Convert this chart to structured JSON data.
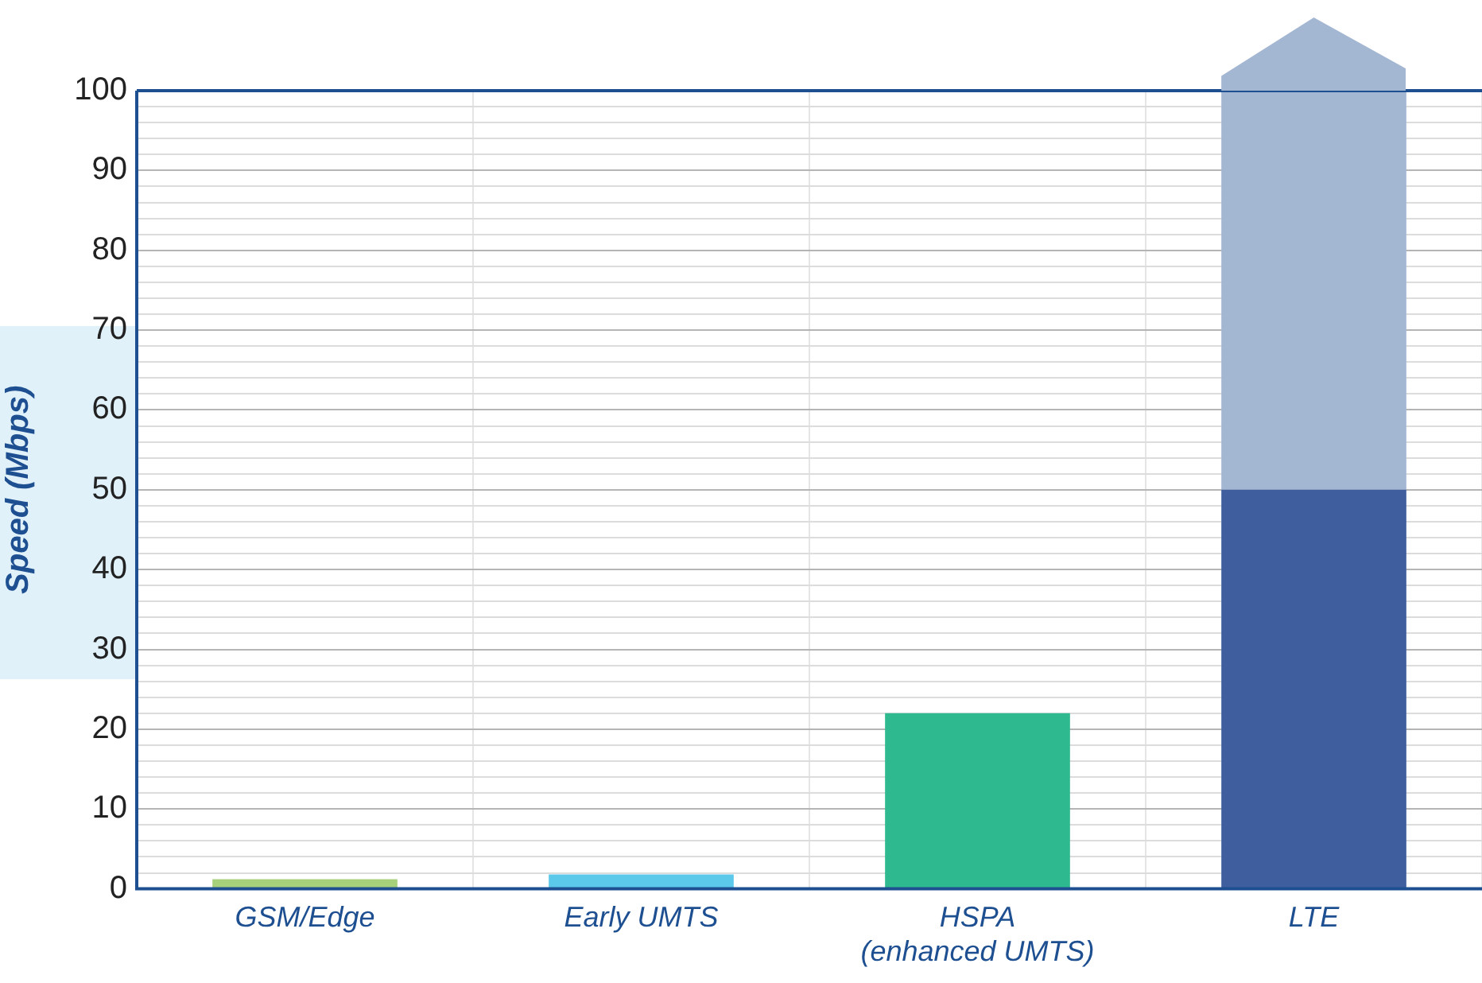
{
  "chart_data": {
    "type": "bar",
    "ylabel": "Speed (Mbps)",
    "categories": [
      "GSM/Edge",
      "Early UMTS",
      "HSPA\n(enhanced UMTS)",
      "LTE"
    ],
    "stacked": true,
    "series": [
      {
        "colors": [
          "#a6d07a",
          "#5cc8ea",
          "#2fb98f",
          "#3f5e9e"
        ],
        "values": [
          1.2,
          1.8,
          22,
          50
        ]
      },
      {
        "color": "#a3b6d2",
        "values": [
          null,
          null,
          null,
          50
        ]
      }
    ],
    "ylim": [
      0,
      100
    ],
    "yticks": [
      0,
      {
        "value": 2,
        "label": null
      },
      {
        "value": 4,
        "label": null
      },
      {
        "value": 6,
        "label": null
      },
      {
        "value": 8,
        "label": null
      },
      10,
      {
        "value": 12,
        "label": null
      },
      {
        "value": 14,
        "label": null
      },
      {
        "value": 16,
        "label": null
      },
      {
        "value": 18,
        "label": null
      },
      20,
      {
        "value": 22,
        "label": null
      },
      {
        "value": 24,
        "label": null
      },
      {
        "value": 26,
        "label": null
      },
      {
        "value": 28,
        "label": null
      },
      30,
      {
        "value": 32,
        "label": null
      },
      {
        "value": 34,
        "label": null
      },
      {
        "value": 36,
        "label": null
      },
      {
        "value": 38,
        "label": null
      },
      40,
      {
        "value": 42,
        "label": null
      },
      {
        "value": 44,
        "label": null
      },
      {
        "value": 46,
        "label": null
      },
      {
        "value": 48,
        "label": null
      },
      50,
      {
        "value": 52,
        "label": null
      },
      {
        "value": 54,
        "label": null
      },
      {
        "value": 56,
        "label": null
      },
      {
        "value": 58,
        "label": null
      },
      60,
      {
        "value": 62,
        "label": null
      },
      {
        "value": 64,
        "label": null
      },
      {
        "value": 66,
        "label": null
      },
      {
        "value": 68,
        "label": null
      },
      70,
      {
        "value": 72,
        "label": null
      },
      {
        "value": 74,
        "label": null
      },
      {
        "value": 76,
        "label": null
      },
      {
        "value": 78,
        "label": null
      },
      80,
      {
        "value": 82,
        "label": null
      },
      {
        "value": 84,
        "label": null
      },
      {
        "value": 86,
        "label": null
      },
      {
        "value": 88,
        "label": null
      },
      90,
      {
        "value": 92,
        "label": null
      },
      {
        "value": 94,
        "label": null
      },
      {
        "value": 96,
        "label": null
      },
      {
        "value": 98,
        "label": null
      },
      100
    ],
    "grid": true,
    "legend": false
  }
}
